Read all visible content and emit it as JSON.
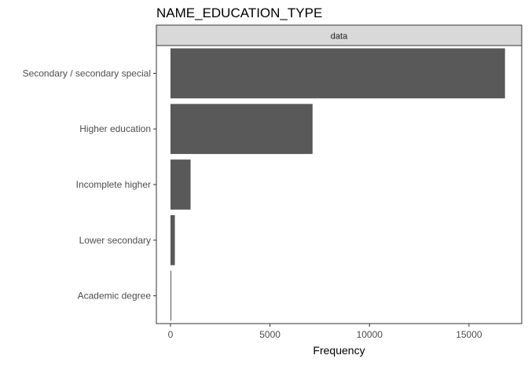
{
  "chart_data": {
    "type": "bar",
    "orientation": "horizontal",
    "title": "NAME_EDUCATION_TYPE",
    "facet_label": "data",
    "xlabel": "Frequency",
    "ylabel": "",
    "categories": [
      "Secondary / secondary special",
      "Higher education",
      "Incomplete higher",
      "Lower secondary",
      "Academic degree"
    ],
    "values": [
      16810,
      7140,
      1010,
      220,
      15
    ],
    "xlim": [
      -710,
      17650
    ],
    "xticks": [
      0,
      5000,
      10000,
      15000
    ],
    "xtick_labels": [
      "0",
      "5000",
      "10000",
      "15000"
    ],
    "bar_color": "#595959",
    "strip_fill": "#d9d9d9",
    "panel_border": "#333333",
    "grid": false
  }
}
